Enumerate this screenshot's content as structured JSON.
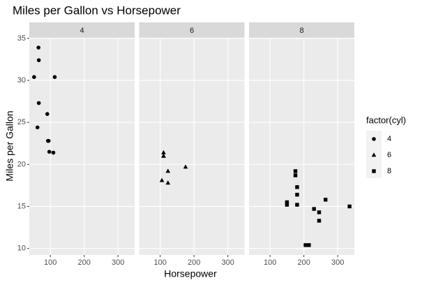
{
  "chart_data": {
    "type": "scatter",
    "title": "Miles per Gallon vs Horsepower",
    "x_label": "Horsepower",
    "y_label": "Miles per Gallon",
    "xlim": [
      37.85,
      349.15
    ],
    "xticks": [
      100,
      200,
      300
    ],
    "ylim": [
      9.225,
      35.075
    ],
    "yticks": [
      10,
      15,
      20,
      25,
      30,
      35
    ],
    "grid": true,
    "legend": {
      "title": "factor(cyl)",
      "position": "right"
    },
    "series": [
      {
        "name": "4",
        "shape": "circle",
        "color": "#000000",
        "x": [
          93,
          62,
          95,
          66,
          52,
          65,
          97,
          66,
          91,
          113,
          109
        ],
        "values": [
          22.8,
          24.4,
          22.8,
          32.4,
          30.4,
          33.9,
          21.5,
          27.3,
          26.0,
          30.4,
          21.4
        ]
      },
      {
        "name": "6",
        "shape": "triangle",
        "color": "#000000",
        "x": [
          110,
          110,
          110,
          105,
          123,
          123,
          175
        ],
        "values": [
          21.0,
          21.0,
          21.4,
          18.1,
          19.2,
          17.8,
          19.7
        ]
      },
      {
        "name": "8",
        "shape": "square",
        "color": "#000000",
        "x": [
          175,
          245,
          180,
          180,
          180,
          205,
          215,
          230,
          150,
          150,
          245,
          175,
          264,
          335
        ],
        "values": [
          18.7,
          14.3,
          16.4,
          17.3,
          15.2,
          10.4,
          10.4,
          14.7,
          15.5,
          15.2,
          13.3,
          19.2,
          15.8,
          15.0
        ]
      }
    ]
  }
}
